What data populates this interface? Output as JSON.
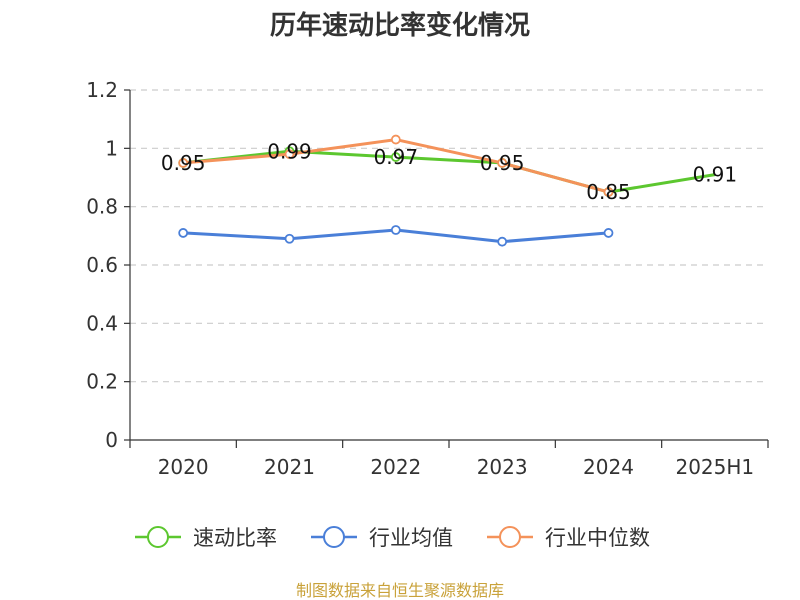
{
  "chart_data": {
    "type": "line",
    "title": "历年速动比率变化情况",
    "categories": [
      "2020",
      "2021",
      "2022",
      "2023",
      "2024",
      "2025H1"
    ],
    "ylim": [
      0,
      1.2
    ],
    "yticks": [
      "0",
      "0.2",
      "0.4",
      "0.6",
      "0.8",
      "1",
      "1.2"
    ],
    "grid": true,
    "legend_position": "bottom",
    "series": [
      {
        "name": "速动比率",
        "color": "#5cc72f",
        "values": [
          0.95,
          0.99,
          0.97,
          0.95,
          0.85,
          0.91
        ],
        "labels": [
          "0.95",
          "0.99",
          "0.97",
          "0.95",
          "0.85",
          "0.91"
        ]
      },
      {
        "name": "行业均值",
        "color": "#4a7fd8",
        "values": [
          0.71,
          0.69,
          0.72,
          0.68,
          0.71,
          null
        ]
      },
      {
        "name": "行业中位数",
        "color": "#f4925a",
        "values": [
          0.95,
          0.98,
          1.03,
          0.95,
          0.85,
          null
        ]
      }
    ]
  },
  "source": "制图数据来自恒生聚源数据库"
}
